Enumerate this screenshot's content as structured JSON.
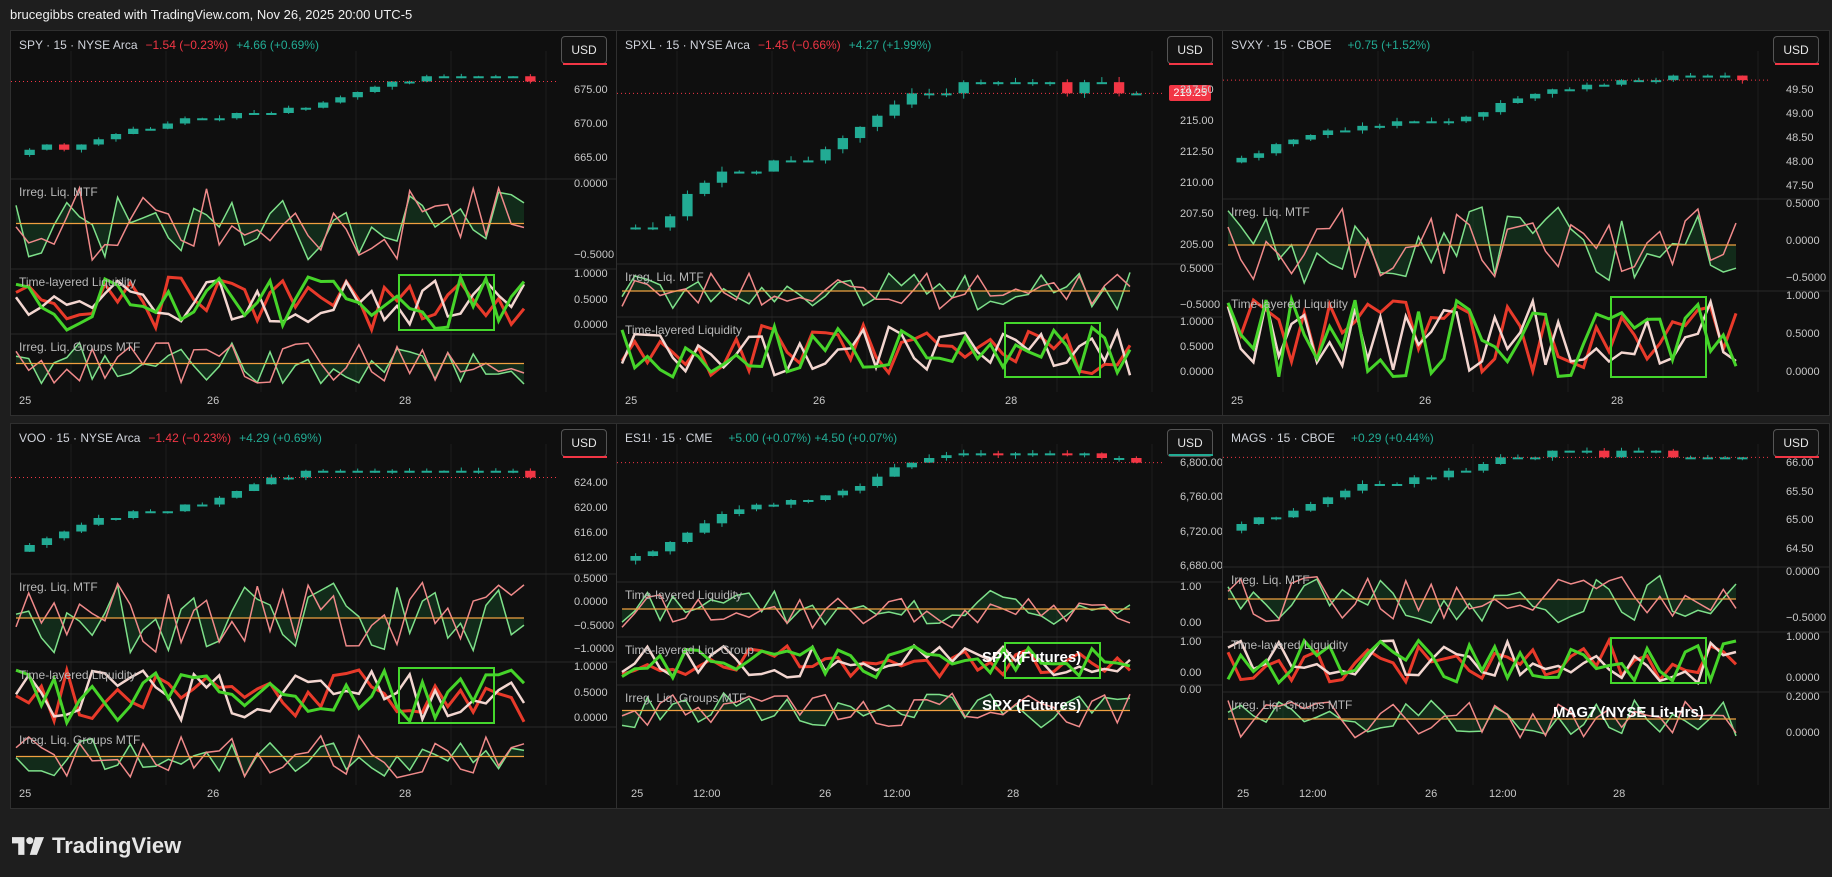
{
  "header": {
    "text": "brucegibbs created with TradingView.com, Nov 26, 2025 20:00 UTC-5"
  },
  "footer": {
    "brand": "TradingView"
  },
  "colors": {
    "up": "#22ab94",
    "down": "#f23645",
    "box": "#44d62c",
    "boxDim": "#9fe39a"
  },
  "currency": "USD",
  "panels": [
    {
      "symbol": "SPY · 15 · NYSE Arca",
      "change1": "−1.54 (−0.23%)",
      "change2": "+4.66 (+0.69%)",
      "price_tag": "",
      "price_ticks": [
        "675.00",
        "670.00",
        "665.00"
      ],
      "pane_labels": [
        "Irreg. Liq. MTF",
        "Time-layered Liquidity",
        "Irreg. Liq. Groups MTF"
      ],
      "ind1_ticks": [
        "0.0000",
        "−0.5000"
      ],
      "ind2_ticks": [
        "1.0000",
        "0.5000",
        "0.0000"
      ],
      "ind3_ticks": [],
      "x_ticks": [
        "25",
        "26",
        "28"
      ],
      "tag": ""
    },
    {
      "symbol": "SPXL · 15 · NYSE Arca",
      "change1": "−1.45 (−0.66%)",
      "change2": "+4.27 (+1.99%)",
      "price_tag": "219.25",
      "price_ticks": [
        "217.50",
        "215.00",
        "212.50",
        "210.00",
        "207.50",
        "205.00"
      ],
      "pane_labels": [
        "Irreg. Liq. MTF",
        "Time-layered Liquidity",
        ""
      ],
      "ind1_ticks": [
        "0.5000",
        "−0.5000"
      ],
      "ind2_ticks": [
        "1.0000",
        "0.5000",
        "0.0000"
      ],
      "ind3_ticks": [],
      "x_ticks": [
        "25",
        "26",
        "28"
      ],
      "tag": ""
    },
    {
      "symbol": "SVXY · 15 · CBOE",
      "change1": "",
      "change2": "+0.75 (+1.52%)",
      "price_tag": "",
      "price_ticks": [
        "49.50",
        "49.00",
        "48.50",
        "48.00",
        "47.50"
      ],
      "pane_labels": [
        "Irreg. Liq. MTF",
        "Time-layered Liquidity",
        ""
      ],
      "ind1_ticks": [
        "0.5000",
        "0.0000",
        "−0.5000"
      ],
      "ind2_ticks": [
        "1.0000",
        "0.5000",
        "0.0000"
      ],
      "ind3_ticks": [],
      "x_ticks": [
        "25",
        "26",
        "28"
      ],
      "tag": ""
    },
    {
      "symbol": "VOO · 15 · NYSE Arca",
      "change1": "−1.42 (−0.23%)",
      "change2": "+4.29 (+0.69%)",
      "price_tag": "",
      "price_ticks": [
        "624.00",
        "620.00",
        "616.00",
        "612.00"
      ],
      "pane_labels": [
        "Irreg. Liq. MTF",
        "Time-layered Liquidity",
        "Irreg. Liq. Groups MTF"
      ],
      "ind1_ticks": [
        "0.5000",
        "0.0000",
        "−0.5000",
        "−1.0000"
      ],
      "ind2_ticks": [
        "1.0000",
        "0.5000",
        "0.0000"
      ],
      "ind3_ticks": [],
      "x_ticks": [
        "25",
        "26",
        "28"
      ],
      "tag": ""
    },
    {
      "symbol": "ES1! · 15 · CME",
      "change1": "",
      "change2": "+5.00 (+0.07%)  +4.50 (+0.07%)",
      "price_tag": "",
      "price_ticks": [
        "6,800.00",
        "6,760.00",
        "6,720.00",
        "6,680.00"
      ],
      "pane_labels": [
        "Time-layered Liquidity",
        "Time-layered Liq. Group",
        "Irreg. Liq. Groups MTF"
      ],
      "ind1_ticks": [
        "1.00",
        "0.00"
      ],
      "ind2_ticks": [
        "1.00",
        "0.00"
      ],
      "ind3_ticks": [
        "0.00"
      ],
      "x_ticks": [
        "25",
        "12:00",
        "26",
        "12:00",
        "28"
      ],
      "tag": "SPX (Futures)"
    },
    {
      "symbol": "MAGS · 15 · CBOE",
      "change1": "",
      "change2": "+0.29 (+0.44%)",
      "price_tag": "",
      "price_ticks": [
        "66.00",
        "65.50",
        "65.00",
        "64.50"
      ],
      "pane_labels": [
        "Irreg. Liq. MTF",
        "Time-layered Liquidity",
        "Irreg. Liq. Groups MTF"
      ],
      "ind1_ticks": [
        "0.0000",
        "−0.5000"
      ],
      "ind2_ticks": [
        "1.0000",
        "0.0000"
      ],
      "ind3_ticks": [
        "0.2000",
        "0.0000"
      ],
      "x_ticks": [
        "25",
        "12:00",
        "26",
        "12:00",
        "28"
      ],
      "tag": "MAG7 (NYSE Lit-Hrs)"
    }
  ],
  "chart_data": [
    {
      "type": "candlestick",
      "title": "SPY · 15 · NYSE Arca",
      "ylim": [
        661,
        681
      ],
      "close": [
        666,
        667,
        666,
        667,
        668,
        669,
        670,
        670,
        671,
        672,
        672,
        672,
        673,
        673,
        673,
        674,
        674,
        675,
        676,
        677,
        678,
        679,
        679,
        680,
        680,
        680,
        680,
        680,
        680,
        679
      ]
    },
    {
      "type": "candlestick",
      "title": "SPXL · 15 · NYSE Arca",
      "ylim": [
        204,
        221
      ],
      "close": [
        207,
        207,
        208,
        210,
        211,
        212,
        212,
        212,
        213,
        213,
        213,
        214,
        215,
        216,
        217,
        218,
        219,
        219,
        219,
        220,
        220,
        220,
        220,
        220,
        220,
        219,
        220,
        220,
        219,
        219
      ]
    },
    {
      "type": "candlestick",
      "title": "SVXY · 15 · CBOE",
      "ylim": [
        47.3,
        50.1
      ],
      "close": [
        48.2,
        48.3,
        48.5,
        48.6,
        48.7,
        48.8,
        48.8,
        48.9,
        48.9,
        49.0,
        49.0,
        49.0,
        49.0,
        49.1,
        49.2,
        49.4,
        49.5,
        49.6,
        49.7,
        49.7,
        49.8,
        49.8,
        49.9,
        49.9,
        49.9,
        50.0,
        50.0,
        50.0,
        50.0,
        49.9
      ]
    },
    {
      "type": "candlestick",
      "title": "VOO · 15 · NYSE Arca",
      "ylim": [
        610,
        626
      ],
      "close": [
        614,
        615,
        616,
        617,
        618,
        618,
        619,
        619,
        619,
        620,
        620,
        621,
        622,
        623,
        624,
        624,
        625,
        625,
        625,
        625,
        625,
        625,
        625,
        625,
        625,
        625,
        625,
        625,
        625,
        624
      ]
    },
    {
      "type": "candlestick",
      "title": "ES1! · 15 · CME",
      "ylim": [
        6670,
        6820
      ],
      "close": [
        6700,
        6705,
        6715,
        6725,
        6735,
        6745,
        6750,
        6755,
        6755,
        6760,
        6760,
        6765,
        6770,
        6775,
        6785,
        6795,
        6800,
        6805,
        6808,
        6810,
        6810,
        6808,
        6810,
        6810,
        6810,
        6808,
        6810,
        6805,
        6805,
        6800
      ]
    },
    {
      "type": "candlestick",
      "title": "MAGS · 15 · CBOE",
      "ylim": [
        64.4,
        66.2
      ],
      "close": [
        65.0,
        65.1,
        65.1,
        65.2,
        65.3,
        65.4,
        65.5,
        65.6,
        65.6,
        65.6,
        65.7,
        65.7,
        65.8,
        65.8,
        65.9,
        66.0,
        66.0,
        66.0,
        66.1,
        66.1,
        66.1,
        66.0,
        66.1,
        66.1,
        66.1,
        66.0,
        66.0,
        66.0,
        66.0,
        66.0
      ]
    }
  ]
}
